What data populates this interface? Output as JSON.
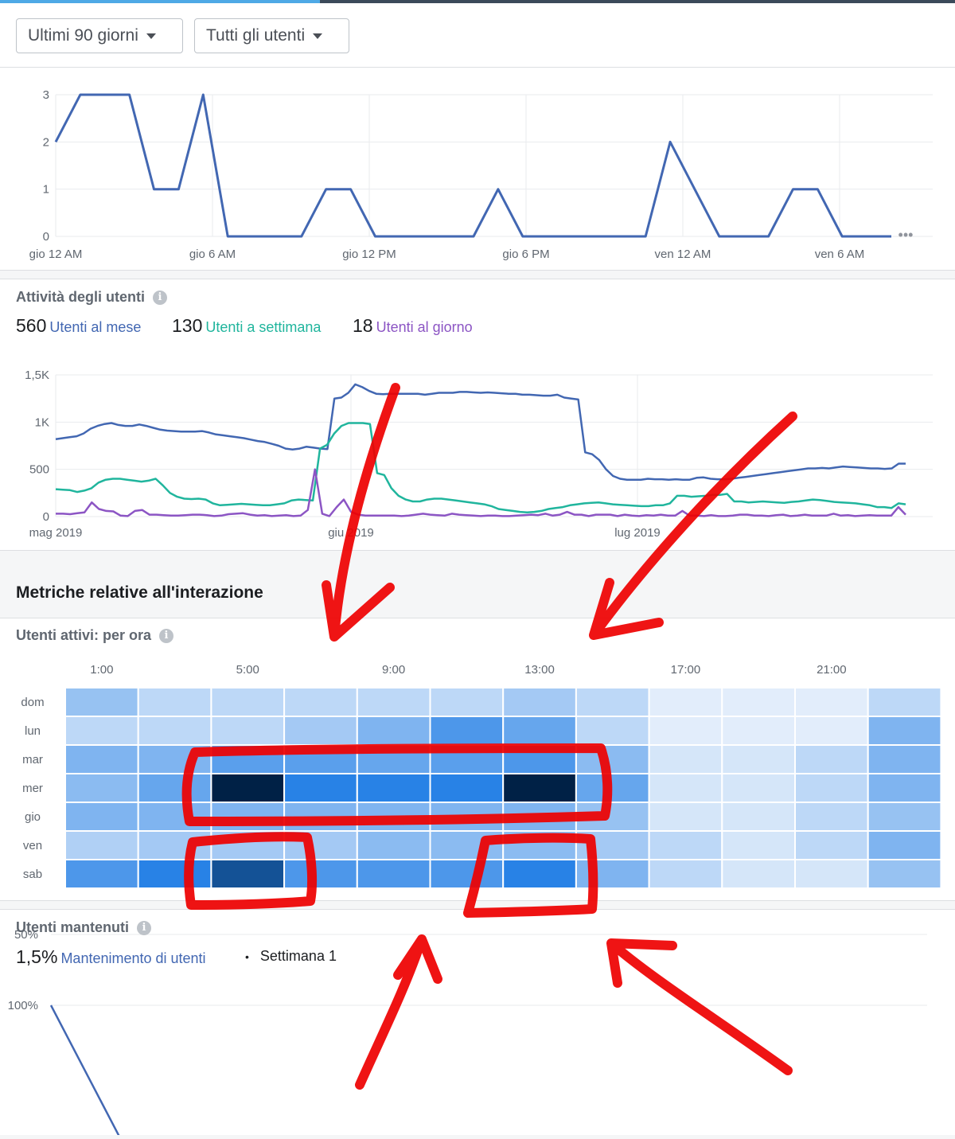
{
  "progress": {
    "fraction": 0.335
  },
  "filters": {
    "period": "Ultimi 90 giorni",
    "audience": "Tutti gli utenti"
  },
  "hourly_chart": {
    "x_ticks": [
      "gio 12 AM",
      "gio 6 AM",
      "gio 12 PM",
      "gio 6 PM",
      "ven 12 AM",
      "ven 6 AM"
    ],
    "y_ticks": [
      "0",
      "1",
      "2",
      "3"
    ]
  },
  "activity": {
    "title": "Attività degli utenti",
    "monthly": {
      "value": "560",
      "label": "Utenti al mese"
    },
    "weekly": {
      "value": "130",
      "label": "Utenti a settimana"
    },
    "daily": {
      "value": "18",
      "label": "Utenti al giorno"
    },
    "x_ticks": [
      "mag 2019",
      "giu 2019",
      "lug 2019"
    ],
    "y_ticks": [
      "0",
      "500",
      "1K",
      "1,5K"
    ]
  },
  "section": {
    "title": "Metriche relative all'interazione"
  },
  "heatmap": {
    "title": "Utenti attivi: per ora",
    "hours": [
      "1:00",
      "5:00",
      "9:00",
      "13:00",
      "17:00",
      "21:00"
    ],
    "days": [
      "dom",
      "lun",
      "mar",
      "mer",
      "gio",
      "ven",
      "sab"
    ]
  },
  "retention": {
    "title": "Utenti mantenuti",
    "value": "1,5%",
    "label": "Mantenimento di utenti",
    "week": "Settimana 1",
    "y_ticks": [
      "100%",
      "50%"
    ]
  },
  "colors": {
    "monthly": "#4267b2",
    "weekly": "#20b59d",
    "daily": "#8c55c4",
    "annotation": "#ee0000"
  },
  "chart_data": [
    {
      "type": "line",
      "xlabel": "",
      "ylabel": "",
      "x_ticks": [
        "gio 12 AM",
        "gio 6 AM",
        "gio 12 PM",
        "gio 6 PM",
        "ven 12 AM",
        "ven 6 AM"
      ],
      "ylim": [
        0,
        3
      ],
      "grid": true,
      "series": [
        {
          "values": [
            2,
            3,
            3,
            3,
            1,
            1,
            3,
            0,
            0,
            0,
            0,
            1,
            1,
            0,
            0,
            0,
            0,
            0,
            1,
            0,
            0,
            0,
            0,
            0,
            0,
            2,
            1,
            0,
            0,
            0,
            1,
            1,
            0,
            0,
            0
          ]
        }
      ]
    },
    {
      "type": "line",
      "xlabel": "",
      "ylabel": "",
      "x_ticks": [
        "mag 2019",
        "giu 2019",
        "lug 2019"
      ],
      "ylim": [
        0,
        1500
      ],
      "grid": true,
      "series": [
        {
          "name": "Utenti al mese",
          "values": [
            820,
            830,
            840,
            850,
            880,
            930,
            960,
            980,
            990,
            970,
            960,
            960,
            975,
            960,
            940,
            920,
            910,
            905,
            900,
            900,
            900,
            905,
            890,
            870,
            860,
            850,
            840,
            830,
            815,
            800,
            790,
            770,
            750,
            720,
            710,
            720,
            740,
            730,
            720,
            715,
            1250,
            1260,
            1310,
            1400,
            1370,
            1330,
            1300,
            1295,
            1300,
            1300,
            1300,
            1300,
            1300,
            1290,
            1300,
            1310,
            1310,
            1310,
            1320,
            1320,
            1315,
            1310,
            1315,
            1310,
            1305,
            1300,
            1300,
            1290,
            1290,
            1285,
            1280,
            1280,
            1290,
            1260,
            1250,
            1240,
            680,
            660,
            600,
            500,
            430,
            400,
            390,
            390,
            390,
            400,
            395,
            395,
            390,
            395,
            390,
            390,
            410,
            415,
            400,
            395,
            395,
            400,
            410,
            420,
            430,
            440,
            450,
            460,
            470,
            480,
            490,
            500,
            510,
            510,
            515,
            510,
            520,
            530,
            525,
            520,
            515,
            510,
            510,
            505,
            510,
            560,
            560
          ]
        },
        {
          "name": "Utenti a settimana",
          "values": [
            290,
            285,
            280,
            260,
            275,
            300,
            360,
            390,
            400,
            400,
            390,
            380,
            370,
            380,
            400,
            330,
            250,
            210,
            190,
            185,
            190,
            180,
            140,
            120,
            125,
            130,
            135,
            130,
            125,
            120,
            120,
            130,
            140,
            170,
            180,
            175,
            170,
            720,
            760,
            880,
            960,
            990,
            990,
            990,
            980,
            460,
            440,
            300,
            220,
            180,
            160,
            160,
            180,
            190,
            190,
            180,
            170,
            160,
            150,
            140,
            130,
            110,
            80,
            70,
            60,
            50,
            45,
            50,
            60,
            80,
            90,
            100,
            120,
            130,
            140,
            145,
            150,
            140,
            130,
            125,
            120,
            115,
            110,
            110,
            120,
            120,
            140,
            220,
            220,
            210,
            215,
            220,
            230,
            230,
            240,
            160,
            160,
            150,
            155,
            160,
            155,
            150,
            145,
            155,
            160,
            170,
            180,
            175,
            165,
            155,
            150,
            145,
            140,
            130,
            120,
            100,
            100,
            90,
            140,
            130
          ]
        },
        {
          "name": "Utenti al giorno",
          "values": [
            30,
            30,
            25,
            35,
            45,
            150,
            80,
            60,
            55,
            10,
            5,
            60,
            70,
            20,
            20,
            15,
            10,
            10,
            15,
            20,
            20,
            15,
            5,
            10,
            25,
            30,
            35,
            20,
            10,
            15,
            5,
            10,
            15,
            5,
            10,
            70,
            500,
            30,
            5,
            100,
            180,
            50,
            20,
            10,
            10,
            10,
            10,
            10,
            5,
            10,
            20,
            30,
            20,
            15,
            10,
            30,
            20,
            15,
            10,
            5,
            10,
            10,
            5,
            5,
            10,
            15,
            20,
            15,
            30,
            10,
            20,
            50,
            20,
            20,
            5,
            20,
            20,
            20,
            5,
            20,
            10,
            5,
            15,
            10,
            20,
            10,
            10,
            60,
            10,
            10,
            5,
            15,
            5,
            5,
            10,
            20,
            20,
            10,
            10,
            5,
            15,
            20,
            5,
            10,
            20,
            10,
            10,
            10,
            30,
            10,
            15,
            5,
            10,
            15,
            10,
            10,
            10,
            100,
            20
          ]
        }
      ]
    },
    {
      "type": "heatmap",
      "x_ticks": [
        "1:00",
        "5:00",
        "9:00",
        "13:00",
        "17:00",
        "21:00"
      ],
      "y_ticks": [
        "dom",
        "lun",
        "mar",
        "mer",
        "gio",
        "ven",
        "sab"
      ],
      "value_range": [
        0,
        1
      ],
      "values": [
        [
          0.35,
          0.2,
          0.2,
          0.2,
          0.2,
          0.2,
          0.3,
          0.2,
          0.05,
          0.05,
          0.05,
          0.2
        ],
        [
          0.2,
          0.2,
          0.2,
          0.3,
          0.45,
          0.65,
          0.55,
          0.2,
          0.05,
          0.05,
          0.05,
          0.45
        ],
        [
          0.45,
          0.45,
          0.6,
          0.6,
          0.55,
          0.6,
          0.65,
          0.4,
          0.1,
          0.1,
          0.2,
          0.45
        ],
        [
          0.4,
          0.55,
          1.0,
          0.8,
          0.8,
          0.8,
          1.0,
          0.55,
          0.1,
          0.1,
          0.2,
          0.45
        ],
        [
          0.45,
          0.45,
          0.45,
          0.45,
          0.45,
          0.45,
          0.45,
          0.35,
          0.1,
          0.1,
          0.2,
          0.35
        ],
        [
          0.25,
          0.3,
          0.3,
          0.3,
          0.4,
          0.4,
          0.4,
          0.3,
          0.2,
          0.1,
          0.2,
          0.45
        ],
        [
          0.65,
          0.8,
          0.9,
          0.65,
          0.65,
          0.65,
          0.8,
          0.45,
          0.2,
          0.1,
          0.1,
          0.35
        ]
      ]
    },
    {
      "type": "line",
      "xlabel": "",
      "ylabel": "",
      "y_ticks": [
        "100%",
        "50%"
      ],
      "ylim": [
        0,
        100
      ],
      "grid": true,
      "series": [
        {
          "values": [
            100,
            50
          ]
        }
      ]
    }
  ]
}
